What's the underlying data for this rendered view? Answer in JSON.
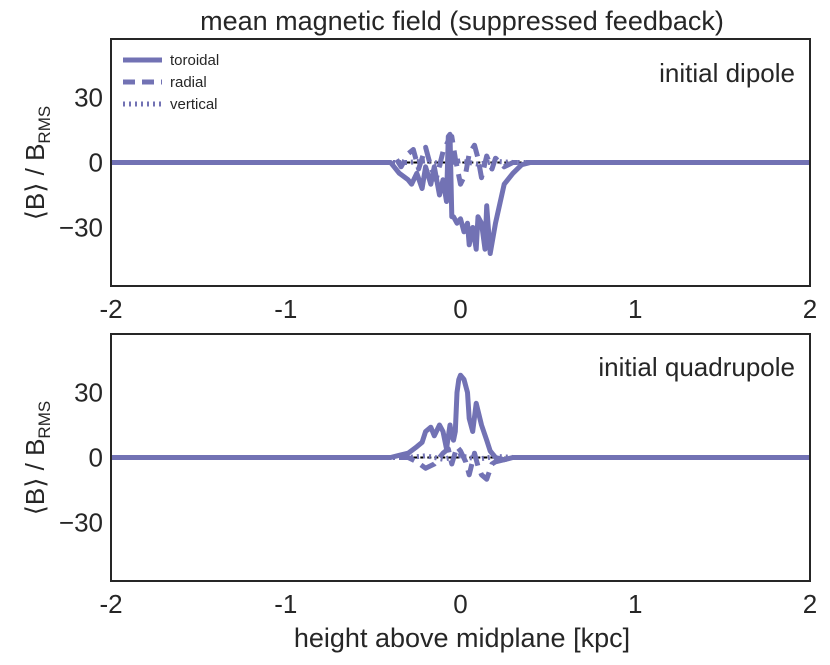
{
  "figure_title": "mean magnetic field (suppressed feedback)",
  "colors": {
    "series": "#7272b4",
    "zero_line": "#000000",
    "axis": "#262626"
  },
  "legend": {
    "position": "top-left",
    "entries": [
      {
        "label": "toroidal",
        "style": "solid"
      },
      {
        "label": "radial",
        "style": "dashed"
      },
      {
        "label": "vertical",
        "style": "dotted"
      }
    ]
  },
  "chart_data": [
    {
      "type": "line",
      "annotation": "initial dipole",
      "title": "",
      "xlabel": "",
      "ylabel_base": "⟨B⟩ / B",
      "ylabel_sub": "RMS",
      "xlim": [
        -2,
        2
      ],
      "ylim": [
        -57,
        57
      ],
      "xticks": [
        -2,
        -1,
        0,
        1,
        2
      ],
      "xtick_labels": [
        "-2",
        "-1",
        "0",
        "1",
        "2"
      ],
      "yticks": [
        30,
        0,
        -30
      ],
      "ytick_labels": [
        "30",
        "0",
        "−30"
      ],
      "grid": false,
      "series": [
        {
          "name": "toroidal",
          "style": "solid",
          "x": [
            -2.0,
            -0.5,
            -0.4,
            -0.38,
            -0.35,
            -0.3,
            -0.28,
            -0.25,
            -0.22,
            -0.2,
            -0.17,
            -0.15,
            -0.12,
            -0.1,
            -0.08,
            -0.07,
            -0.06,
            -0.05,
            -0.04,
            -0.02,
            0.0,
            0.02,
            0.04,
            0.05,
            0.07,
            0.09,
            0.1,
            0.12,
            0.14,
            0.15,
            0.17,
            0.2,
            0.25,
            0.3,
            0.35,
            0.4,
            0.5,
            2.0
          ],
          "y": [
            0,
            0,
            0,
            -2,
            -5,
            -8,
            -10,
            -5,
            -12,
            -2,
            -10,
            -2,
            -15,
            -8,
            -18,
            12,
            13,
            -25,
            -25,
            -28,
            -26,
            -32,
            -28,
            -38,
            -30,
            -40,
            -25,
            -28,
            -40,
            -20,
            -42,
            -28,
            -10,
            -5,
            -1,
            0,
            0,
            0
          ]
        },
        {
          "name": "radial",
          "style": "dashed",
          "x": [
            -2.0,
            -0.4,
            -0.37,
            -0.34,
            -0.3,
            -0.27,
            -0.24,
            -0.2,
            -0.17,
            -0.14,
            -0.1,
            -0.07,
            -0.05,
            -0.03,
            0.0,
            0.03,
            0.05,
            0.08,
            0.1,
            0.12,
            0.15,
            0.18,
            0.2,
            0.25,
            0.3,
            0.4,
            2.0
          ],
          "y": [
            0,
            0,
            2,
            -2,
            4,
            6,
            -3,
            7,
            -2,
            -8,
            5,
            10,
            12,
            2,
            -10,
            -5,
            4,
            8,
            2,
            -7,
            3,
            -3,
            2,
            -2,
            0,
            0,
            0
          ]
        },
        {
          "name": "vertical",
          "style": "dotted",
          "x": [
            -2.0,
            -0.3,
            -0.2,
            -0.1,
            0.0,
            0.1,
            0.2,
            0.3,
            2.0
          ],
          "y": [
            0,
            0,
            0.8,
            -0.8,
            0.8,
            -0.8,
            0.5,
            0,
            0
          ]
        }
      ]
    },
    {
      "type": "line",
      "annotation": "initial quadrupole",
      "title": "",
      "xlabel": "height above midplane [kpc]",
      "ylabel_base": "⟨B⟩ / B",
      "ylabel_sub": "RMS",
      "xlim": [
        -2,
        2
      ],
      "ylim": [
        -57,
        57
      ],
      "xticks": [
        -2,
        -1,
        0,
        1,
        2
      ],
      "xtick_labels": [
        "-2",
        "-1",
        "0",
        "1",
        "2"
      ],
      "yticks": [
        30,
        0,
        -30
      ],
      "ytick_labels": [
        "30",
        "0",
        "−30"
      ],
      "grid": false,
      "series": [
        {
          "name": "toroidal",
          "style": "solid",
          "x": [
            -2.0,
            -0.4,
            -0.35,
            -0.3,
            -0.25,
            -0.22,
            -0.2,
            -0.17,
            -0.15,
            -0.12,
            -0.1,
            -0.08,
            -0.06,
            -0.05,
            -0.04,
            -0.03,
            -0.02,
            -0.01,
            0.0,
            0.02,
            0.04,
            0.05,
            0.07,
            0.09,
            0.12,
            0.15,
            0.17,
            0.2,
            0.25,
            0.3,
            2.0
          ],
          "y": [
            0,
            0,
            1,
            2,
            5,
            7,
            12,
            14,
            10,
            15,
            12,
            4,
            15,
            10,
            8,
            12,
            30,
            36,
            38,
            36,
            30,
            18,
            12,
            25,
            15,
            8,
            3,
            0,
            -1,
            0,
            0
          ]
        },
        {
          "name": "radial",
          "style": "dashed",
          "x": [
            -2.0,
            -0.35,
            -0.3,
            -0.25,
            -0.2,
            -0.15,
            -0.1,
            -0.07,
            -0.05,
            -0.02,
            0.0,
            0.03,
            0.05,
            0.08,
            0.1,
            0.12,
            0.15,
            0.18,
            0.2,
            0.25,
            0.3,
            2.0
          ],
          "y": [
            0,
            0,
            0,
            -2,
            -5,
            -3,
            2,
            4,
            -3,
            5,
            3,
            -2,
            -8,
            2,
            -4,
            -8,
            -10,
            -3,
            -2,
            -1,
            0,
            0
          ]
        },
        {
          "name": "vertical",
          "style": "dotted",
          "x": [
            -2.0,
            -0.3,
            -0.2,
            -0.1,
            0.0,
            0.1,
            0.2,
            0.3,
            2.0
          ],
          "y": [
            0,
            0,
            0.8,
            -0.8,
            0.8,
            -0.8,
            0.5,
            0,
            0
          ]
        }
      ]
    }
  ]
}
